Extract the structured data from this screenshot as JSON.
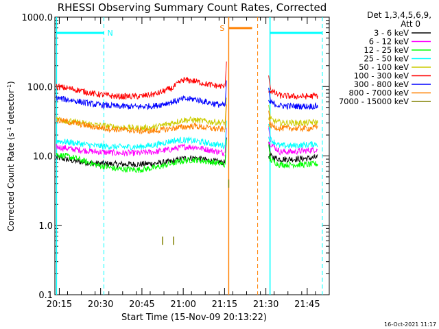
{
  "chart_data": {
    "type": "line",
    "title": "RHESSI Observing Summary Count Rates, Corrected",
    "xlabel": "Start Time (15-Nov-09 20:13:22)",
    "ylabel_main": "Corrected Count Rate (s",
    "ylabel_sup1": "-1",
    "ylabel_mid": " detector",
    "ylabel_sup2": "-1",
    "ylabel_end": ")",
    "yscale": "log",
    "ylim": [
      0.1,
      1000
    ],
    "xlim_min": [
      1213.4,
      1313
    ],
    "y_ticks": [
      {
        "v": 0.1,
        "label": "0.1"
      },
      {
        "v": 1,
        "label": "1.0"
      },
      {
        "v": 10,
        "label": "10.0"
      },
      {
        "v": 100,
        "label": "100.0"
      },
      {
        "v": 1000,
        "label": "1000.0"
      }
    ],
    "x_ticks": [
      {
        "t": 1215,
        "label": "20:15"
      },
      {
        "t": 1230,
        "label": "20:30"
      },
      {
        "t": 1245,
        "label": "20:45"
      },
      {
        "t": 1260,
        "label": "21:00"
      },
      {
        "t": 1275,
        "label": "21:15"
      },
      {
        "t": 1290,
        "label": "21:30"
      },
      {
        "t": 1305,
        "label": "21:45"
      }
    ],
    "legend_header": [
      "Det 1,3,4,5,6,9,",
      "Att 0"
    ],
    "legend_position": "right",
    "series": [
      {
        "name": "3 - 6 keV",
        "color": "#000000",
        "x": [
          1214,
          1220,
          1228,
          1236,
          1244,
          1250,
          1256,
          1260,
          1264,
          1270,
          1275,
          1291,
          1295,
          1300,
          1305,
          1309
        ],
        "y": [
          9.5,
          8.5,
          7.8,
          7.6,
          7.6,
          7.8,
          8.3,
          9.2,
          9.4,
          8.5,
          8.0,
          10.0,
          9.0,
          9.0,
          9.2,
          9.5
        ]
      },
      {
        "name": "6 - 12 keV",
        "color": "#ff00ff",
        "x": [
          1214,
          1220,
          1228,
          1236,
          1244,
          1250,
          1256,
          1260,
          1264,
          1270,
          1275,
          1291,
          1295,
          1300,
          1305,
          1309
        ],
        "y": [
          13.5,
          12.5,
          11.5,
          11.0,
          11.0,
          11.5,
          12.5,
          13.5,
          13.5,
          12.0,
          11.0,
          16.0,
          11.5,
          11.5,
          12.0,
          12.5
        ]
      },
      {
        "name": "12 - 25 keV",
        "color": "#00ff00",
        "x": [
          1214,
          1220,
          1228,
          1236,
          1244,
          1250,
          1256,
          1260,
          1264,
          1270,
          1275,
          1291,
          1295,
          1300,
          1305,
          1309
        ],
        "y": [
          10.5,
          9.5,
          7.5,
          6.5,
          6.3,
          6.8,
          7.8,
          8.5,
          8.8,
          8.2,
          7.5,
          9.0,
          7.5,
          7.5,
          7.5,
          7.7
        ]
      },
      {
        "name": "25 - 50 keV",
        "color": "#00ffff",
        "x": [
          1214,
          1220,
          1228,
          1236,
          1244,
          1250,
          1256,
          1260,
          1264,
          1270,
          1275,
          1291,
          1295,
          1300,
          1305,
          1309
        ],
        "y": [
          16.5,
          15.5,
          14.0,
          13.5,
          13.5,
          14.5,
          16.5,
          17.0,
          16.5,
          15.0,
          14.0,
          18.0,
          14.0,
          14.0,
          14.5,
          15.0
        ]
      },
      {
        "name": "50 - 100 keV",
        "color": "#cccc00",
        "x": [
          1214,
          1220,
          1228,
          1236,
          1244,
          1250,
          1256,
          1260,
          1264,
          1270,
          1275,
          1291,
          1295,
          1300,
          1305,
          1309
        ],
        "y": [
          34,
          31,
          28,
          26,
          25,
          26,
          30,
          33,
          33,
          31,
          30,
          34,
          30,
          30,
          30,
          31
        ]
      },
      {
        "name": "100 - 300 keV",
        "color": "#ff0000",
        "x": [
          1214,
          1220,
          1228,
          1236,
          1244,
          1250,
          1256,
          1260,
          1264,
          1270,
          1275,
          1291,
          1295,
          1300,
          1305,
          1309
        ],
        "y": [
          100,
          92,
          78,
          72,
          72,
          78,
          95,
          125,
          120,
          105,
          100,
          90,
          74,
          72,
          72,
          74
        ]
      },
      {
        "name": "300 - 800 keV",
        "color": "#0000ff",
        "x": [
          1214,
          1220,
          1228,
          1236,
          1244,
          1250,
          1256,
          1260,
          1264,
          1270,
          1275,
          1291,
          1295,
          1300,
          1305,
          1309
        ],
        "y": [
          68,
          63,
          55,
          52,
          51,
          53,
          60,
          66,
          66,
          58,
          53,
          60,
          53,
          52,
          52,
          52
        ]
      },
      {
        "name": "800 - 7000 keV",
        "color": "#ff8000",
        "x": [
          1214,
          1220,
          1228,
          1236,
          1244,
          1250,
          1256,
          1260,
          1264,
          1270,
          1275,
          1291,
          1295,
          1300,
          1305,
          1309
        ],
        "y": [
          33,
          30,
          26,
          24,
          23,
          23,
          25,
          26,
          27,
          25,
          24,
          28,
          25,
          25,
          25,
          26
        ]
      },
      {
        "name": "7000 - 15000 keV",
        "color": "#808000",
        "x": [
          1252.5,
          1256.5,
          1276.5
        ],
        "y": [
          0.6,
          0.6,
          4.0
        ]
      }
    ],
    "attenuator_markers": [
      {
        "label": "N",
        "color": "#00ffff",
        "segments": [
          [
            1214.0,
            1231.2
          ],
          [
            1291.5,
            1310.5
          ]
        ],
        "dashed_at": [
          1231.2,
          1310.5
        ],
        "solid_at": [
          1214.0,
          1291.5
        ]
      },
      {
        "label": "S",
        "color": "#ff8000",
        "segments": [
          [
            1276.5,
            1285.0
          ]
        ],
        "dashed_at": [
          1287.0
        ],
        "solid_at": [
          1276.5
        ]
      }
    ],
    "timestamp": "16-Oct-2021 11:17"
  }
}
